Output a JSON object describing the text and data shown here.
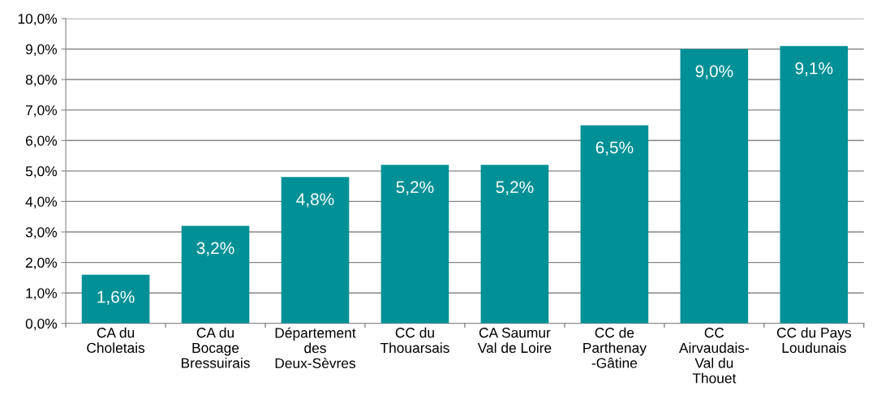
{
  "chart_data": {
    "type": "bar",
    "categories": [
      "CA du\nCholetais",
      "CA du\nBocage\nBressuirais",
      "Département\ndes\nDeux-Sèvres",
      "CC du\nThouarsais",
      "CA Saumur\nVal de Loire",
      "CC de\nParthenay\n-Gâtine",
      "CC\nAirvaudais-\nVal du\nThouet",
      "CC du Pays\nLoudunais"
    ],
    "values": [
      1.6,
      3.2,
      4.8,
      5.2,
      5.2,
      6.5,
      9.0,
      9.1
    ],
    "value_labels": [
      "1,6%",
      "3,2%",
      "4,8%",
      "5,2%",
      "5,2%",
      "6,5%",
      "9,0%",
      "9,1%"
    ],
    "color": "#009096",
    "ylim": [
      0,
      10
    ],
    "yticks": [
      {
        "value": 0,
        "label": "0,0%"
      },
      {
        "value": 1,
        "label": "1,0%"
      },
      {
        "value": 2,
        "label": "2,0%"
      },
      {
        "value": 3,
        "label": "3,0%"
      },
      {
        "value": 4,
        "label": "4,0%"
      },
      {
        "value": 5,
        "label": "5,0%"
      },
      {
        "value": 6,
        "label": "6,0%"
      },
      {
        "value": 7,
        "label": "7,0%"
      },
      {
        "value": 8,
        "label": "8,0%"
      },
      {
        "value": 9,
        "label": "9,0%"
      },
      {
        "value": 10,
        "label": "10,0%"
      }
    ],
    "grid": "y",
    "legend": false
  }
}
